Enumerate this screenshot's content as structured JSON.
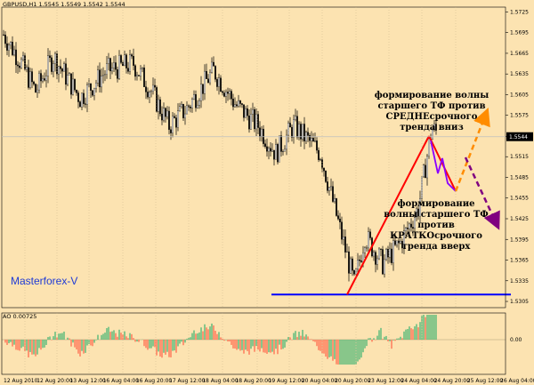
{
  "symbol_line": "GBPUSD,H1  1.5545 1.5549 1.5542 1.5544",
  "indicator_line": "AO 0.00725",
  "watermark": "Masterforex-V",
  "annotations": {
    "upper": "формирование волны старшего ТФ против СРЕДНЕсрочного тренда вниз",
    "lower": "формирование волны старшего ТФ против КРАТКОсрочного тренда вверх"
  },
  "colors": {
    "background": "#fce3b1",
    "candle_up": "#000000",
    "candle_down": "#000000",
    "support_line": "#0000ff",
    "wave_up": "#ff0000",
    "wave_down": "#8b00ff",
    "arrow_up": "#ff8c00",
    "arrow_down": "#800080",
    "ao_up": "#3cb371",
    "ao_down": "#ff6347",
    "price_line": "#c0c0c0"
  },
  "chart_data": {
    "type": "candlestick",
    "symbol": "GBPUSD",
    "timeframe": "H1",
    "current_price": 1.5544,
    "price_axis": {
      "ticks": [
        1.5725,
        1.5695,
        1.5665,
        1.5635,
        1.5605,
        1.5575,
        1.5544,
        1.5515,
        1.5485,
        1.5455,
        1.5425,
        1.5395,
        1.5365,
        1.5335,
        1.5305
      ],
      "ylim": [
        1.5296,
        1.5732
      ]
    },
    "time_axis": {
      "labels": [
        "12 Aug 2010",
        "12 Aug 20:00",
        "13 Aug 12:00",
        "16 Aug 04:00",
        "16 Aug 20:00",
        "17 Aug 12:00",
        "18 Aug 04:00",
        "18 Aug 20:00",
        "19 Aug 12:00",
        "20 Aug 04:00",
        "20 Aug 20:00",
        "23 Aug 12:00",
        "24 Aug 04:00",
        "24 Aug 20:00",
        "25 Aug 12:00",
        "26 Aug 04:00"
      ]
    },
    "support_level": 1.5315,
    "wave_points": [
      {
        "time_index": 0.0,
        "price": 1.5315
      },
      {
        "time_index": 1.0,
        "price": 1.556
      },
      {
        "time_index": 1.4,
        "price": 1.547
      }
    ],
    "ao_axis": {
      "ticks": [
        0.0,
        -0.0
      ],
      "value": 0.00725
    }
  }
}
